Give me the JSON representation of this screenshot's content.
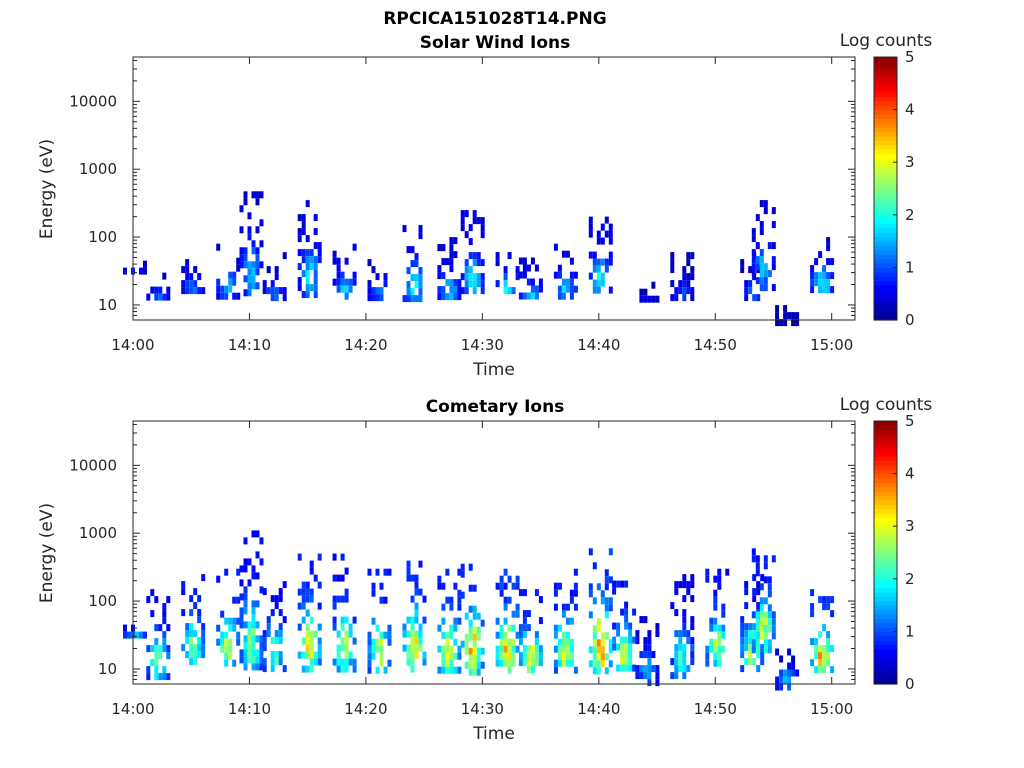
{
  "figure_title": "RPCICA151028T14.PNG",
  "colormap": [
    "#00008f",
    "#0000ff",
    "#0080ff",
    "#00ffff",
    "#80ff80",
    "#ffff00",
    "#ff8000",
    "#ff0000",
    "#800000"
  ],
  "chart_data": [
    {
      "type": "heatmap",
      "title": "Solar Wind Ions",
      "xlabel": "Time",
      "ylabel": "Energy (eV)",
      "x_range": [
        "14:00",
        "15:02"
      ],
      "y_range": [
        6,
        45000
      ],
      "y_scale": "log",
      "x_ticks": [
        "14:00",
        "14:10",
        "14:20",
        "14:30",
        "14:40",
        "14:50",
        "15:00"
      ],
      "y_ticks": [
        "10",
        "100",
        "1000",
        "10000"
      ],
      "colorbar": {
        "label": "Log counts",
        "min": 0,
        "max": 5,
        "ticks": [
          "0",
          "1",
          "2",
          "3",
          "4",
          "5"
        ]
      },
      "clusters": [
        {
          "t": "14:00",
          "e_lo": 35,
          "e_hi": 45,
          "peak": 1.0
        },
        {
          "t": "14:02",
          "e_lo": 12,
          "e_hi": 30,
          "peak": 1.2
        },
        {
          "t": "14:05",
          "e_lo": 15,
          "e_hi": 60,
          "peak": 1.3
        },
        {
          "t": "14:08",
          "e_lo": 15,
          "e_hi": 80,
          "peak": 1.8
        },
        {
          "t": "14:10",
          "e_lo": 15,
          "e_hi": 600,
          "peak": 1.6
        },
        {
          "t": "14:12",
          "e_lo": 12,
          "e_hi": 60,
          "peak": 1.2
        },
        {
          "t": "14:15",
          "e_lo": 15,
          "e_hi": 350,
          "peak": 1.8
        },
        {
          "t": "14:18",
          "e_lo": 12,
          "e_hi": 80,
          "peak": 1.7
        },
        {
          "t": "14:21",
          "e_lo": 12,
          "e_hi": 60,
          "peak": 1.3
        },
        {
          "t": "14:24",
          "e_lo": 12,
          "e_hi": 150,
          "peak": 1.9
        },
        {
          "t": "14:27",
          "e_lo": 12,
          "e_hi": 100,
          "peak": 1.7
        },
        {
          "t": "14:29",
          "e_lo": 15,
          "e_hi": 250,
          "peak": 1.9
        },
        {
          "t": "14:32",
          "e_lo": 15,
          "e_hi": 60,
          "peak": 2.0
        },
        {
          "t": "14:34",
          "e_lo": 12,
          "e_hi": 50,
          "peak": 1.7
        },
        {
          "t": "14:37",
          "e_lo": 15,
          "e_hi": 80,
          "peak": 1.8
        },
        {
          "t": "14:40",
          "e_lo": 15,
          "e_hi": 200,
          "peak": 2.0
        },
        {
          "t": "14:44",
          "e_lo": 12,
          "e_hi": 22,
          "peak": 0.6
        },
        {
          "t": "14:47",
          "e_lo": 12,
          "e_hi": 60,
          "peak": 1.0
        },
        {
          "t": "14:53",
          "e_lo": 12,
          "e_hi": 60,
          "peak": 1.1
        },
        {
          "t": "14:54",
          "e_lo": 20,
          "e_hi": 350,
          "peak": 1.6
        },
        {
          "t": "14:56",
          "e_lo": 6,
          "e_hi": 16,
          "peak": 0.3
        },
        {
          "t": "14:59",
          "e_lo": 15,
          "e_hi": 100,
          "peak": 2.1
        }
      ]
    },
    {
      "type": "heatmap",
      "title": "Cometary Ions",
      "xlabel": "Time",
      "ylabel": "Energy (eV)",
      "x_range": [
        "14:00",
        "15:02"
      ],
      "y_range": [
        6,
        45000
      ],
      "y_scale": "log",
      "x_ticks": [
        "14:00",
        "14:10",
        "14:20",
        "14:30",
        "14:40",
        "14:50",
        "15:00"
      ],
      "y_ticks": [
        "10",
        "100",
        "1000",
        "10000"
      ],
      "colorbar": {
        "label": "Log counts",
        "min": 0,
        "max": 5,
        "ticks": [
          "0",
          "1",
          "2",
          "3",
          "4",
          "5"
        ]
      },
      "clusters": [
        {
          "t": "14:00",
          "e_lo": 30,
          "e_hi": 45,
          "peak": 2.2
        },
        {
          "t": "14:02",
          "e_lo": 8,
          "e_hi": 150,
          "peak": 2.5
        },
        {
          "t": "14:05",
          "e_lo": 12,
          "e_hi": 250,
          "peak": 2.8
        },
        {
          "t": "14:08",
          "e_lo": 12,
          "e_hi": 300,
          "peak": 3.0
        },
        {
          "t": "14:10",
          "e_lo": 10,
          "e_hi": 1100,
          "peak": 2.6
        },
        {
          "t": "14:12",
          "e_lo": 10,
          "e_hi": 250,
          "peak": 2.4
        },
        {
          "t": "14:15",
          "e_lo": 10,
          "e_hi": 500,
          "peak": 3.2
        },
        {
          "t": "14:18",
          "e_lo": 10,
          "e_hi": 500,
          "peak": 2.8
        },
        {
          "t": "14:21",
          "e_lo": 10,
          "e_hi": 300,
          "peak": 3.0
        },
        {
          "t": "14:24",
          "e_lo": 10,
          "e_hi": 500,
          "peak": 3.3
        },
        {
          "t": "14:27",
          "e_lo": 10,
          "e_hi": 300,
          "peak": 3.3
        },
        {
          "t": "14:29",
          "e_lo": 10,
          "e_hi": 450,
          "peak": 3.6
        },
        {
          "t": "14:32",
          "e_lo": 10,
          "e_hi": 300,
          "peak": 3.7
        },
        {
          "t": "14:34",
          "e_lo": 10,
          "e_hi": 150,
          "peak": 3.3
        },
        {
          "t": "14:37",
          "e_lo": 10,
          "e_hi": 300,
          "peak": 3.2
        },
        {
          "t": "14:40",
          "e_lo": 10,
          "e_hi": 600,
          "peak": 3.8
        },
        {
          "t": "14:42",
          "e_lo": 10,
          "e_hi": 200,
          "peak": 3.0
        },
        {
          "t": "14:44",
          "e_lo": 7,
          "e_hi": 60,
          "peak": 1.6
        },
        {
          "t": "14:47",
          "e_lo": 8,
          "e_hi": 250,
          "peak": 2.2
        },
        {
          "t": "14:50",
          "e_lo": 12,
          "e_hi": 300,
          "peak": 2.8
        },
        {
          "t": "14:53",
          "e_lo": 10,
          "e_hi": 250,
          "peak": 2.8
        },
        {
          "t": "14:54",
          "e_lo": 20,
          "e_hi": 600,
          "peak": 3.0
        },
        {
          "t": "14:56",
          "e_lo": 6,
          "e_hi": 20,
          "peak": 1.8
        },
        {
          "t": "14:59",
          "e_lo": 10,
          "e_hi": 150,
          "peak": 3.7
        }
      ]
    }
  ]
}
